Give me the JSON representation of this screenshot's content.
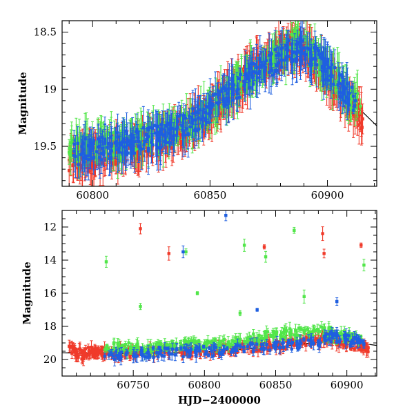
{
  "colors": {
    "red": "#f03a2a",
    "green": "#52e64a",
    "blue": "#1f5fe0",
    "model": "#000000",
    "frame": "#000000"
  },
  "chart_data": [
    {
      "type": "scatter",
      "title": "",
      "xlabel": "",
      "ylabel": "Magnitude",
      "xlim": [
        60787,
        60921
      ],
      "ylim": [
        19.85,
        18.4
      ],
      "y_inverted": true,
      "xticks": [
        60800,
        60850,
        60900
      ],
      "xtick_labels": [
        "60800",
        "60850",
        "60900"
      ],
      "yticks": [
        18.5,
        19,
        19.5
      ],
      "ytick_labels": [
        "18.5",
        "19",
        "19.5"
      ],
      "grid": false,
      "legend": "none",
      "series": [
        {
          "color": "red",
          "errorbars": true,
          "values_note": "dense red photometry",
          "x": [
            60790,
            60795,
            60800,
            60805,
            60810,
            60815,
            60820,
            60825,
            60830,
            60835,
            60840,
            60845,
            60850,
            60855,
            60860,
            60865,
            60870,
            60875,
            60880,
            60885,
            60890,
            60895,
            60900,
            60905,
            60910,
            60915
          ],
          "y": [
            19.62,
            19.6,
            19.58,
            19.56,
            19.55,
            19.52,
            19.5,
            19.47,
            19.44,
            19.4,
            19.34,
            19.27,
            19.2,
            19.1,
            19.0,
            18.9,
            18.82,
            18.74,
            18.68,
            18.62,
            18.66,
            18.76,
            18.88,
            19.0,
            19.12,
            19.26
          ]
        },
        {
          "color": "green",
          "errorbars": true,
          "x": [
            60790,
            60797,
            60805,
            60812,
            60820,
            60828,
            60835,
            60843,
            60850,
            60858,
            60865,
            60872,
            60880,
            60887,
            60894,
            60900,
            60907,
            60914
          ],
          "y": [
            19.55,
            19.5,
            19.45,
            19.5,
            19.42,
            19.38,
            19.35,
            19.3,
            19.15,
            19.05,
            18.9,
            18.8,
            18.7,
            18.6,
            18.7,
            18.85,
            19.0,
            19.15
          ]
        },
        {
          "color": "blue",
          "errorbars": true,
          "x": [
            60792,
            60800,
            60808,
            60815,
            60823,
            60830,
            60838,
            60845,
            60853,
            60860,
            60868,
            60876,
            60883,
            60890,
            60898,
            60905,
            60912
          ],
          "y": [
            19.58,
            19.52,
            19.5,
            19.46,
            19.44,
            19.4,
            19.32,
            19.25,
            19.12,
            19.0,
            18.88,
            18.78,
            18.66,
            18.64,
            18.8,
            18.95,
            19.1
          ]
        }
      ],
      "model_curve": {
        "color": "model",
        "x": [
          60900,
          60905,
          60910,
          60915,
          60920,
          60921
        ],
        "y": [
          19.0,
          19.05,
          19.12,
          19.2,
          19.3,
          19.32
        ]
      }
    },
    {
      "type": "scatter",
      "title": "",
      "xlabel": "HJD−2400000",
      "ylabel": "Magnitude",
      "xlim": [
        60700,
        60921
      ],
      "ylim": [
        21,
        11
      ],
      "y_inverted": true,
      "xticks": [
        60750,
        60800,
        60850,
        60900
      ],
      "xtick_labels": [
        "60750",
        "60800",
        "60850",
        "60900"
      ],
      "yticks": [
        12,
        14,
        16,
        18,
        20
      ],
      "ytick_labels": [
        "12",
        "14",
        "16",
        "18",
        "20"
      ],
      "grid": false,
      "legend": "none",
      "series": [
        {
          "color": "red",
          "errorbars": true,
          "x": [
            60705,
            60710,
            60715,
            60720,
            60725,
            60730,
            60740,
            60750,
            60760,
            60770,
            60780,
            60790,
            60800,
            60810,
            60820,
            60830,
            60840,
            60850,
            60860,
            60870,
            60880,
            60885,
            60890,
            60895,
            60900,
            60910,
            60915
          ],
          "y": [
            19.2,
            19.6,
            19.7,
            19.5,
            19.6,
            19.6,
            19.6,
            19.6,
            19.55,
            19.5,
            19.5,
            19.5,
            19.45,
            19.4,
            19.35,
            19.3,
            19.2,
            19.1,
            19.0,
            18.9,
            18.8,
            18.7,
            18.75,
            18.9,
            19.0,
            19.2,
            19.3
          ]
        },
        {
          "color": "red",
          "errorbars": true,
          "x": [
            60755,
            60775,
            60842,
            60883,
            60884,
            60910
          ],
          "y": [
            12.1,
            13.6,
            13.2,
            12.4,
            13.6,
            13.1
          ]
        },
        {
          "color": "green",
          "errorbars": true,
          "x": [
            60730,
            60740,
            60750,
            60760,
            60770,
            60780,
            60790,
            60800,
            60810,
            60820,
            60830,
            60840,
            60850,
            60860,
            60870,
            60880,
            60890,
            60900,
            60910
          ],
          "y": [
            19.4,
            19.2,
            19.3,
            19.4,
            19.2,
            19.2,
            19.1,
            19.1,
            19.0,
            18.9,
            18.8,
            18.7,
            18.5,
            18.4,
            18.4,
            18.3,
            18.4,
            18.6,
            18.8
          ]
        },
        {
          "color": "green",
          "errorbars": true,
          "x": [
            60731,
            60787,
            60828,
            60843,
            60863,
            60912,
            60795,
            60870,
            60755,
            60825
          ],
          "y": [
            14.1,
            13.5,
            13.1,
            13.8,
            12.2,
            14.3,
            16.0,
            16.2,
            16.8,
            17.2
          ]
        },
        {
          "color": "blue",
          "errorbars": true,
          "x": [
            60730,
            60745,
            60760,
            60775,
            60790,
            60805,
            60820,
            60835,
            60850,
            60865,
            60880,
            60890,
            60900,
            60912
          ],
          "y": [
            19.8,
            19.7,
            19.6,
            19.6,
            19.5,
            19.5,
            19.4,
            19.3,
            19.2,
            19.1,
            18.9,
            18.6,
            18.8,
            19.1
          ]
        },
        {
          "color": "blue",
          "errorbars": true,
          "x": [
            60815,
            60785,
            60837,
            60893
          ],
          "y": [
            11.3,
            13.5,
            17.0,
            16.5
          ]
        }
      ],
      "model_curve": {
        "color": "model",
        "x": [
          60700,
          60750,
          60800,
          60850,
          60880,
          60900,
          60921
        ],
        "y": [
          19.6,
          19.65,
          19.55,
          19.25,
          18.95,
          18.9,
          19.15
        ]
      }
    }
  ]
}
